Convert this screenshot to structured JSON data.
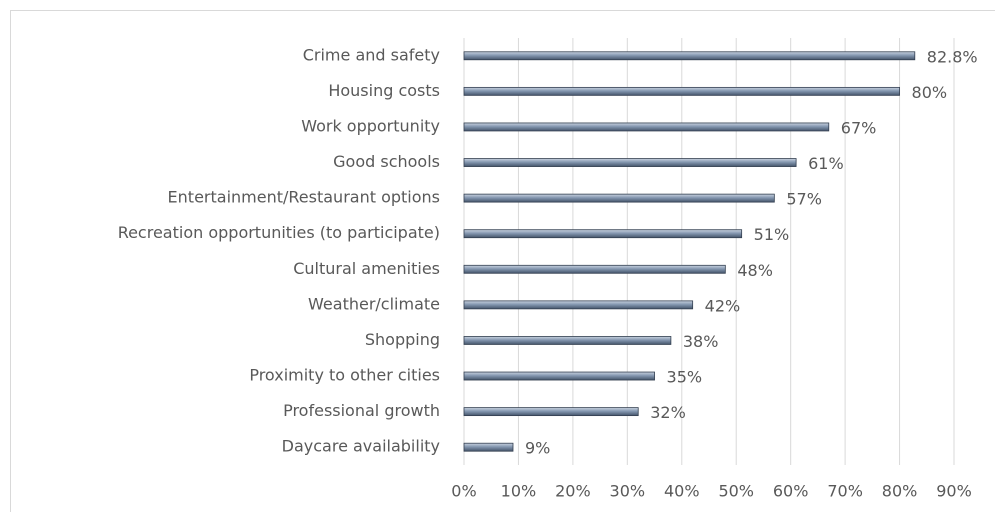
{
  "chart_data": {
    "type": "barh",
    "categories": [
      "Crime and safety",
      "Housing costs",
      "Work opportunity",
      "Good schools",
      "Entertainment/Restaurant options",
      "Recreation opportunities (to participate)",
      "Cultural amenities",
      "Weather/climate",
      "Shopping",
      "Proximity to other cities",
      "Professional growth",
      "Daycare availability"
    ],
    "values": [
      82.8,
      80,
      67,
      61,
      57,
      51,
      48,
      42,
      38,
      35,
      32,
      9
    ],
    "value_labels": [
      "82.8%",
      "80%",
      "67%",
      "61%",
      "57%",
      "51%",
      "48%",
      "42%",
      "38%",
      "35%",
      "32%",
      "9%"
    ],
    "color": "#8497b0",
    "xlim": [
      0,
      90
    ],
    "xticks": [
      {
        "value": 0,
        "label": "0%"
      },
      {
        "value": 10,
        "label": "10%"
      },
      {
        "value": 20,
        "label": "20%"
      },
      {
        "value": 30,
        "label": "30%"
      },
      {
        "value": 40,
        "label": "40%"
      },
      {
        "value": 50,
        "label": "50%"
      },
      {
        "value": 60,
        "label": "60%"
      },
      {
        "value": 70,
        "label": "70%"
      },
      {
        "value": 80,
        "label": "80%"
      },
      {
        "value": 90,
        "label": "90%"
      }
    ],
    "grid": true
  }
}
